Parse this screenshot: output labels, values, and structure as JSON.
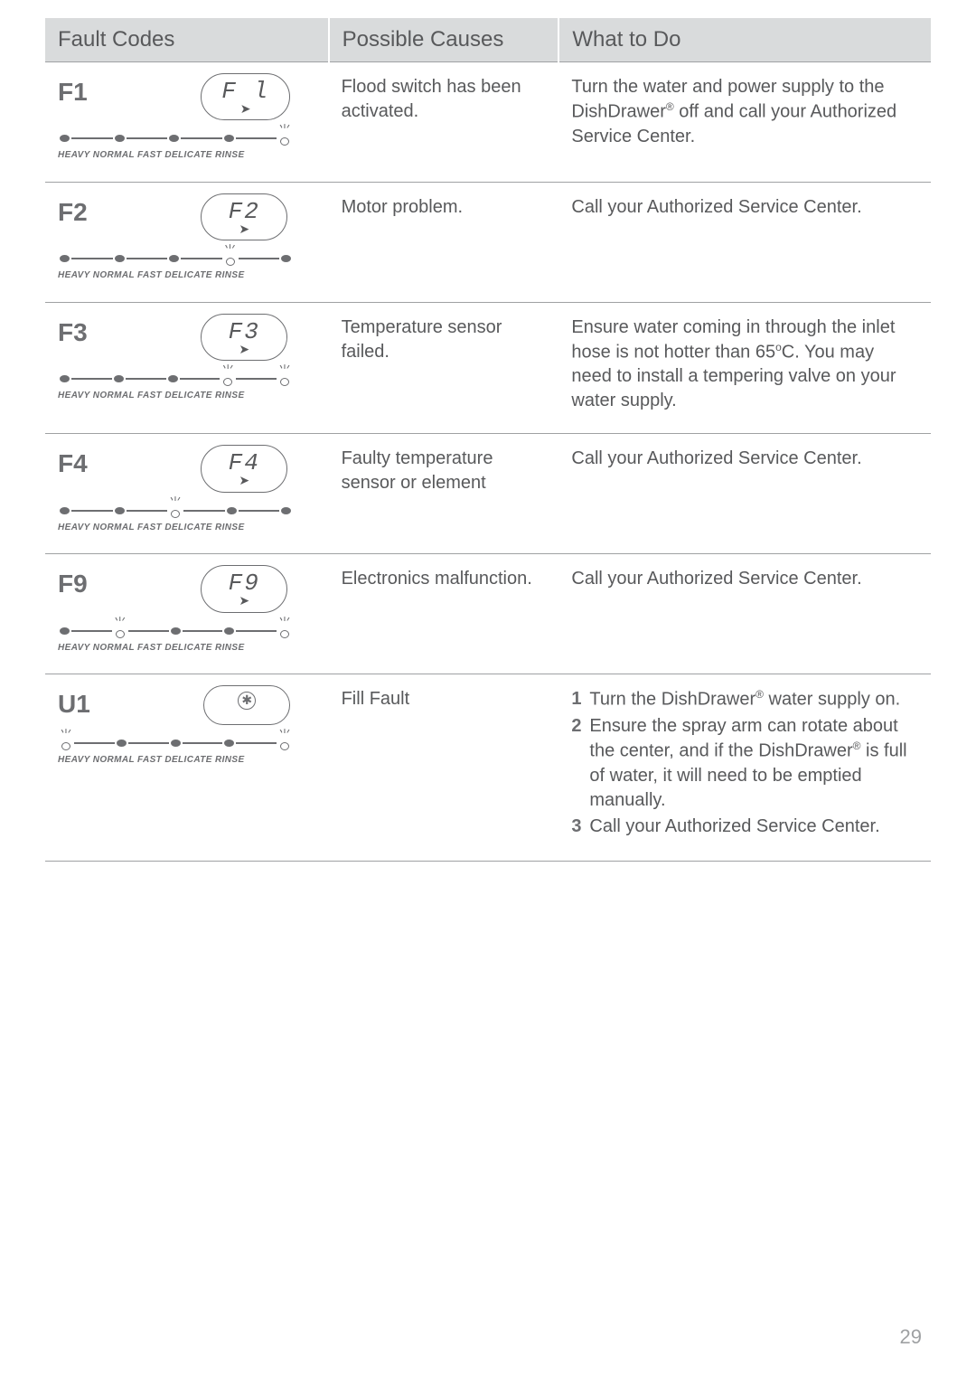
{
  "headers": {
    "fault_codes": "Fault Codes",
    "possible_causes": "Possible Causes",
    "what_to_do": "What to Do"
  },
  "slider_labels": "HEAVY NORMAL FAST DELICATE RINSE",
  "page_number": "29",
  "rows": [
    {
      "code": "F1",
      "display": "F l",
      "indicator": [
        "f",
        "f",
        "f",
        "f",
        "s"
      ],
      "cause": "Flood switch has been activated.",
      "action_text": "Turn the water and power supply to the DishDrawer® off and call your Authorized Service Center."
    },
    {
      "code": "F2",
      "display": "F2",
      "indicator": [
        "f",
        "f",
        "f",
        "s",
        "f"
      ],
      "cause": "Motor problem.",
      "action_text": "Call your Authorized Service Center."
    },
    {
      "code": "F3",
      "display": "F3",
      "indicator": [
        "f",
        "f",
        "f",
        "s",
        "s"
      ],
      "cause": "Temperature sensor failed.",
      "action_text": "Ensure water coming in through the inlet hose is not hotter than 65°C.  You may need to install a tempering valve on your water supply."
    },
    {
      "code": "F4",
      "display": "F4",
      "indicator": [
        "f",
        "f",
        "s",
        "f",
        "f"
      ],
      "cause": "Faulty temperature sensor or element",
      "action_text": "Call your Authorized Service Center."
    },
    {
      "code": "F9",
      "display": "F9",
      "indicator": [
        "f",
        "s",
        "f",
        "f",
        "s"
      ],
      "cause": "Electronics malfunction.",
      "action_text": "Call your Authorized Service Center."
    },
    {
      "code": "U1",
      "display": "tap",
      "indicator": [
        "s",
        "f",
        "f",
        "f",
        "s"
      ],
      "cause": "Fill Fault",
      "action_list": [
        "Turn the DishDrawer® water supply on.",
        "Ensure the spray arm can rotate about the center, and if the DishDrawer® is full of water, it will need to be emptied manually.",
        "Call your Authorized Service Center."
      ]
    }
  ]
}
